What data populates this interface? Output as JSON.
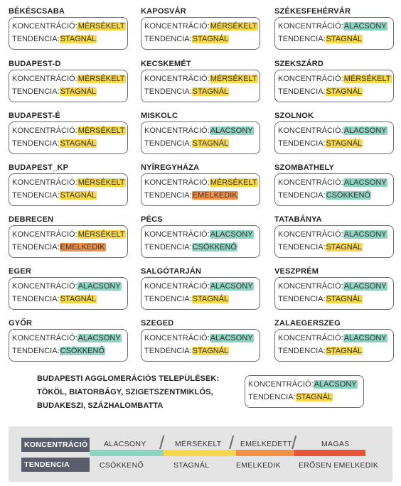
{
  "labels": {
    "concentration": "KONCENTRÁCIÓ:",
    "trend": "TENDENCIA:"
  },
  "cities": [
    {
      "name": "BÉKÉSCSABA",
      "conc": "MÉRSÉKELT",
      "trend": "STAGNÁL"
    },
    {
      "name": "KAPOSVÁR",
      "conc": "MÉRSÉKELT",
      "trend": "STAGNÁL"
    },
    {
      "name": "SZÉKESFEHÉRVÁR",
      "conc": "ALACSONY",
      "trend": "STAGNÁL"
    },
    {
      "name": "BUDAPEST-D",
      "conc": "MÉRSÉKELT",
      "trend": "STAGNÁL"
    },
    {
      "name": "KECSKEMÉT",
      "conc": "MÉRSÉKELT",
      "trend": "STAGNÁL"
    },
    {
      "name": "SZEKSZÁRD",
      "conc": "MÉRSÉKELT",
      "trend": "STAGNÁL"
    },
    {
      "name": "BUDAPEST-É",
      "conc": "MÉRSÉKELT",
      "trend": "STAGNÁL"
    },
    {
      "name": "MISKOLC",
      "conc": "ALACSONY",
      "trend": "STAGNÁL"
    },
    {
      "name": "SZOLNOK",
      "conc": "ALACSONY",
      "trend": "STAGNÁL"
    },
    {
      "name": "BUDAPEST_KP",
      "conc": "MÉRSÉKELT",
      "trend": "STAGNÁL"
    },
    {
      "name": "NYÍREGYHÁZA",
      "conc": "MÉRSÉKELT",
      "trend": "EMELKEDIK"
    },
    {
      "name": "SZOMBATHELY",
      "conc": "ALACSONY",
      "trend": "CSÖKKENŐ"
    },
    {
      "name": "DEBRECEN",
      "conc": "MÉRSÉKELT",
      "trend": "EMELKEDIK"
    },
    {
      "name": "PÉCS",
      "conc": "ALACSONY",
      "trend": "CSÖKKENŐ"
    },
    {
      "name": "TATABÁNYA",
      "conc": "ALACSONY",
      "trend": "STAGNÁL"
    },
    {
      "name": "EGER",
      "conc": "ALACSONY",
      "trend": "STAGNÁL"
    },
    {
      "name": "SALGÓTARJÁN",
      "conc": "ALACSONY",
      "trend": "STAGNÁL"
    },
    {
      "name": "VESZPRÉM",
      "conc": "ALACSONY",
      "trend": "STAGNÁL"
    },
    {
      "name": "GYŐR",
      "conc": "ALACSONY",
      "trend": "CSÖKKENŐ"
    },
    {
      "name": "SZEGED",
      "conc": "ALACSONY",
      "trend": "STAGNÁL"
    },
    {
      "name": "ZALAEGERSZEG",
      "conc": "ALACSONY",
      "trend": "STAGNÁL"
    }
  ],
  "agglomeration": {
    "lines": [
      "BUDAPESTI AGGLOMERÁCIÓS TELEPÜLÉSEK:",
      "TÖKÖL, BIATORBÁGY, SZIGETSZENTMIKLÓS,",
      "BUDAKESZI, SZÁZHALOMBATTA"
    ],
    "conc": "ALACSONY",
    "trend": "STAGNÁL"
  },
  "legend": {
    "concentration_label": "KONCENTRÁCIÓ",
    "trend_label": "TENDENCIA",
    "concentration_levels": [
      "ALACSONY",
      "MÉRSÉKELT",
      "EMELKEDETT",
      "MAGAS"
    ],
    "trend_levels": [
      "CSÖKKENŐ",
      "STAGNÁL",
      "EMELKEDIK",
      "ERŐSEN EMELKEDIK"
    ],
    "bar_colors": [
      "#8fd3c1",
      "#f7d84a",
      "#f0924a",
      "#e8543a"
    ]
  },
  "value_colors": {
    "MÉRSÉKELT": "#f7d84a",
    "ALACSONY": "#8fd3c1",
    "STAGNÁL": "#f7d84a",
    "EMELKEDIK": "#f0924a",
    "CSÖKKENŐ": "#8fd3c1"
  }
}
